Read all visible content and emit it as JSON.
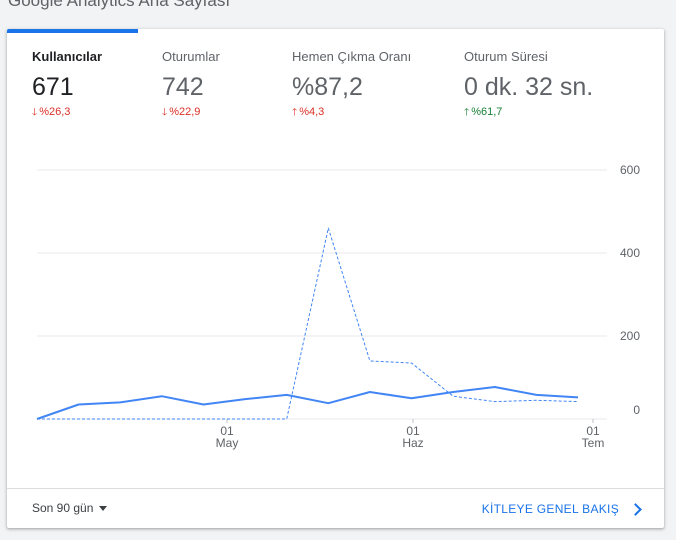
{
  "page": {
    "title": "Google Analytics Ana Sayfası"
  },
  "metrics": [
    {
      "label": "Kullanıcılar",
      "value": "671",
      "change": "%26,3",
      "direction": "down"
    },
    {
      "label": "Oturumlar",
      "value": "742",
      "change": "%22,9",
      "direction": "down"
    },
    {
      "label": "Hemen Çıkma Oranı",
      "value": "%87,2",
      "change": "%4,3",
      "direction": "up"
    },
    {
      "label": "Oturum Süresi",
      "value": "0 dk. 32 sn.",
      "change": "%61,7",
      "direction": "up"
    }
  ],
  "chart_data": {
    "type": "line",
    "y_ticks": [
      "600",
      "400",
      "200",
      "0"
    ],
    "ylim": [
      0,
      600
    ],
    "x_ticks": [
      {
        "day": "01",
        "month": "May"
      },
      {
        "day": "01",
        "month": "Haz"
      },
      {
        "day": "01",
        "month": "Tem"
      }
    ],
    "grid": true,
    "series": [
      {
        "style": "solid",
        "values": [
          0,
          35,
          40,
          55,
          35,
          48,
          58,
          38,
          65,
          50,
          65,
          77,
          58,
          52
        ]
      },
      {
        "style": "dashed",
        "values": [
          0,
          0,
          0,
          0,
          0,
          0,
          0,
          460,
          140,
          135,
          55,
          42,
          45,
          42
        ]
      }
    ],
    "colors": {
      "series": "#4285f4",
      "grid": "#e8eaed"
    }
  },
  "footer": {
    "date_range": "Son 90 gün",
    "link": "KİTLEYE GENEL BAKIŞ"
  }
}
